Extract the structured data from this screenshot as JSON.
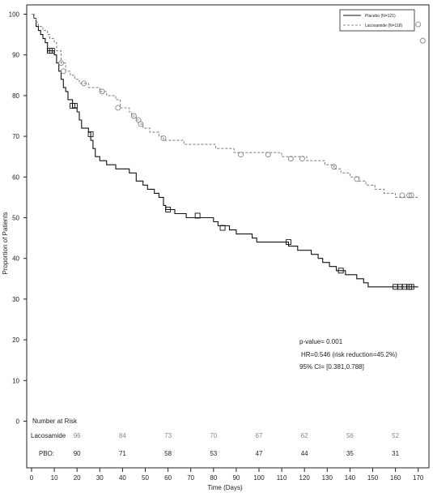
{
  "chart_data": {
    "type": "line",
    "subtype": "kaplan-meier",
    "xlabel": "Time (Days)",
    "ylabel": "Proportion of Patients",
    "xlim": [
      0,
      170
    ],
    "ylim": [
      0,
      100
    ],
    "xticks": [
      0,
      10,
      20,
      30,
      40,
      50,
      60,
      70,
      80,
      90,
      100,
      110,
      120,
      130,
      140,
      150,
      160,
      170
    ],
    "yticks": [
      0,
      10,
      20,
      30,
      40,
      50,
      60,
      70,
      80,
      90,
      100
    ],
    "grid": false,
    "legend_position": "top-right",
    "series": [
      {
        "name": "Placebo (N=121)",
        "color": "#111111",
        "line_style": "solid",
        "marker": "square",
        "steps": [
          [
            0,
            100
          ],
          [
            1,
            99
          ],
          [
            2,
            97
          ],
          [
            3,
            96
          ],
          [
            4,
            95
          ],
          [
            5,
            94
          ],
          [
            6,
            93
          ],
          [
            7,
            91
          ],
          [
            10,
            90
          ],
          [
            11,
            88
          ],
          [
            12,
            86
          ],
          [
            13,
            84
          ],
          [
            14,
            82
          ],
          [
            15,
            81
          ],
          [
            16,
            79
          ],
          [
            18,
            77
          ],
          [
            20,
            76
          ],
          [
            21,
            74
          ],
          [
            22,
            72
          ],
          [
            25,
            71
          ],
          [
            26,
            69
          ],
          [
            27,
            67
          ],
          [
            28,
            65
          ],
          [
            30,
            64
          ],
          [
            33,
            63
          ],
          [
            37,
            62
          ],
          [
            43,
            61
          ],
          [
            46,
            59
          ],
          [
            49,
            58
          ],
          [
            51,
            57
          ],
          [
            54,
            56
          ],
          [
            56,
            55
          ],
          [
            58,
            53
          ],
          [
            59,
            52
          ],
          [
            63,
            51
          ],
          [
            68,
            50
          ],
          [
            80,
            49
          ],
          [
            82,
            48
          ],
          [
            87,
            47
          ],
          [
            90,
            46
          ],
          [
            97,
            45
          ],
          [
            99,
            44
          ],
          [
            113,
            43
          ],
          [
            117,
            42
          ],
          [
            123,
            41
          ],
          [
            126,
            40
          ],
          [
            128,
            39
          ],
          [
            131,
            38
          ],
          [
            134,
            37
          ],
          [
            138,
            36
          ],
          [
            143,
            35
          ],
          [
            146,
            34
          ],
          [
            148,
            33
          ],
          [
            170,
            33
          ]
        ],
        "censored": [
          [
            8,
            91
          ],
          [
            9,
            91
          ],
          [
            18,
            77.5
          ],
          [
            19,
            77.5
          ],
          [
            26,
            70.5
          ],
          [
            60,
            52
          ],
          [
            73,
            50.5
          ],
          [
            84,
            47.5
          ],
          [
            113,
            44
          ],
          [
            136,
            37
          ],
          [
            160,
            33
          ],
          [
            162,
            33
          ],
          [
            164,
            33
          ],
          [
            166,
            33
          ],
          [
            167,
            33
          ]
        ]
      },
      {
        "name": "Lacosamide (N=118)",
        "color": "#888888",
        "line_style": "dashed",
        "marker": "circle",
        "steps": [
          [
            0,
            100
          ],
          [
            1,
            99
          ],
          [
            2,
            98
          ],
          [
            3,
            97
          ],
          [
            5,
            96
          ],
          [
            7,
            95
          ],
          [
            8,
            94
          ],
          [
            10,
            93
          ],
          [
            11,
            91
          ],
          [
            13,
            88
          ],
          [
            15,
            86
          ],
          [
            17,
            85
          ],
          [
            19,
            84
          ],
          [
            21,
            83
          ],
          [
            25,
            82
          ],
          [
            30,
            81
          ],
          [
            33,
            80
          ],
          [
            37,
            79
          ],
          [
            39,
            77
          ],
          [
            43,
            76
          ],
          [
            44,
            75
          ],
          [
            46,
            74
          ],
          [
            48,
            73
          ],
          [
            49,
            72
          ],
          [
            52,
            71
          ],
          [
            56,
            70
          ],
          [
            58,
            69
          ],
          [
            67,
            68
          ],
          [
            81,
            67
          ],
          [
            89,
            66
          ],
          [
            110,
            65
          ],
          [
            121,
            64
          ],
          [
            129,
            63
          ],
          [
            133,
            62
          ],
          [
            136,
            61
          ],
          [
            140,
            60
          ],
          [
            144,
            59
          ],
          [
            147,
            58
          ],
          [
            151,
            57
          ],
          [
            155,
            56
          ],
          [
            160,
            55
          ],
          [
            170,
            55
          ]
        ],
        "censored": [
          [
            13,
            88
          ],
          [
            14,
            86
          ],
          [
            23,
            83
          ],
          [
            31,
            81
          ],
          [
            38,
            77
          ],
          [
            45,
            75
          ],
          [
            47,
            74
          ],
          [
            48,
            73
          ],
          [
            58,
            69.5
          ],
          [
            92,
            65.5
          ],
          [
            104,
            65.5
          ],
          [
            114,
            64.5
          ],
          [
            119,
            64.5
          ],
          [
            133,
            62.5
          ],
          [
            143,
            59.5
          ],
          [
            163,
            55.5
          ],
          [
            166,
            55.5
          ],
          [
            167,
            55.5
          ],
          [
            170,
            97.5
          ],
          [
            172,
            93.5
          ]
        ]
      }
    ],
    "annotations": {
      "p_value": "p-value= 0.001",
      "hr": "HR=0.546 (risk reduction=45.2%)",
      "ci": "95% CI= [0.381,0.788]"
    },
    "risk_table": {
      "title": "Number at Risk",
      "x": [
        0,
        20,
        40,
        60,
        80,
        100,
        120,
        140,
        160
      ],
      "rows": [
        {
          "label": "Lacosamide",
          "values": [
            "",
            "96",
            "84",
            "73",
            "70",
            "67",
            "62",
            "56",
            "52"
          ]
        },
        {
          "label": "PBO:",
          "values": [
            "",
            "90",
            "71",
            "58",
            "53",
            "47",
            "44",
            "35",
            "31"
          ]
        }
      ]
    }
  }
}
